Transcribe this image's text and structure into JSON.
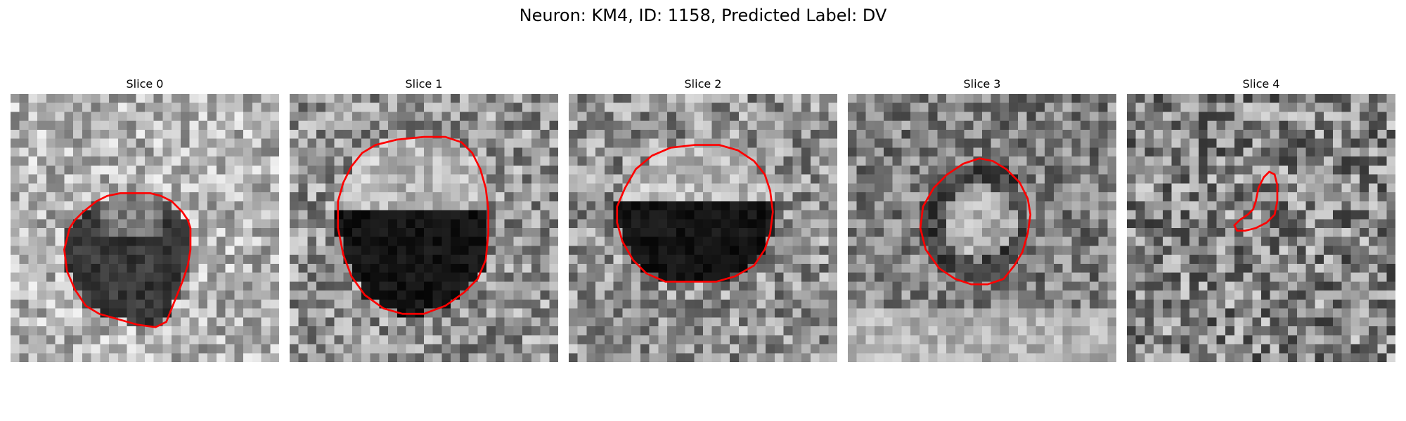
{
  "figure": {
    "title": "Neuron: KM4, ID: 1158, Predicted Label: DV"
  },
  "colors": {
    "contour": "#ff0000",
    "background": "#ffffff",
    "colormap": "gray"
  },
  "panels": [
    {
      "title": "Slice 0",
      "structure": "dark-ring",
      "seed": 11,
      "contour": [
        [
          22,
          50
        ],
        [
          24,
          47
        ],
        [
          27,
          44
        ],
        [
          32,
          40
        ],
        [
          36,
          38
        ],
        [
          41,
          37
        ],
        [
          52,
          37
        ],
        [
          56,
          38
        ],
        [
          60,
          40
        ],
        [
          64,
          44
        ],
        [
          66,
          47
        ],
        [
          67,
          50
        ],
        [
          67,
          58
        ],
        [
          66,
          64
        ],
        [
          64,
          70
        ],
        [
          62,
          75
        ],
        [
          60,
          80
        ],
        [
          58,
          85
        ],
        [
          54,
          87
        ],
        [
          47,
          86
        ],
        [
          40,
          84
        ],
        [
          33,
          82
        ],
        [
          28,
          79
        ],
        [
          24,
          73
        ],
        [
          21,
          66
        ],
        [
          20,
          58
        ]
      ]
    },
    {
      "title": "Slice 1",
      "structure": "bright-cap",
      "seed": 23,
      "contour": [
        [
          18,
          40
        ],
        [
          20,
          33
        ],
        [
          23,
          27
        ],
        [
          27,
          22
        ],
        [
          32,
          19
        ],
        [
          40,
          17
        ],
        [
          50,
          16
        ],
        [
          58,
          16
        ],
        [
          64,
          18
        ],
        [
          68,
          22
        ],
        [
          71,
          28
        ],
        [
          73,
          35
        ],
        [
          74,
          43
        ],
        [
          74,
          52
        ],
        [
          73,
          62
        ],
        [
          70,
          69
        ],
        [
          65,
          74
        ],
        [
          58,
          79
        ],
        [
          50,
          82
        ],
        [
          42,
          82
        ],
        [
          35,
          80
        ],
        [
          28,
          75
        ],
        [
          23,
          68
        ],
        [
          20,
          60
        ],
        [
          18,
          50
        ]
      ]
    },
    {
      "title": "Slice 2",
      "structure": "bright-cap",
      "seed": 37,
      "contour": [
        [
          18,
          42
        ],
        [
          21,
          35
        ],
        [
          25,
          28
        ],
        [
          31,
          23
        ],
        [
          38,
          20
        ],
        [
          47,
          19
        ],
        [
          56,
          19
        ],
        [
          63,
          21
        ],
        [
          69,
          25
        ],
        [
          73,
          30
        ],
        [
          75,
          36
        ],
        [
          76,
          44
        ],
        [
          75,
          52
        ],
        [
          73,
          58
        ],
        [
          69,
          64
        ],
        [
          62,
          68
        ],
        [
          55,
          70
        ],
        [
          45,
          70
        ],
        [
          36,
          70
        ],
        [
          29,
          67
        ],
        [
          24,
          62
        ],
        [
          20,
          55
        ],
        [
          18,
          48
        ]
      ]
    },
    {
      "title": "Slice 3",
      "structure": "bright-center",
      "seed": 51,
      "contour": [
        [
          28,
          42
        ],
        [
          32,
          35
        ],
        [
          37,
          30
        ],
        [
          43,
          26
        ],
        [
          49,
          24
        ],
        [
          54,
          25
        ],
        [
          59,
          28
        ],
        [
          64,
          33
        ],
        [
          67,
          39
        ],
        [
          68,
          45
        ],
        [
          67,
          52
        ],
        [
          65,
          59
        ],
        [
          62,
          64
        ],
        [
          58,
          69
        ],
        [
          52,
          71
        ],
        [
          46,
          71
        ],
        [
          40,
          69
        ],
        [
          34,
          65
        ],
        [
          29,
          58
        ],
        [
          27,
          50
        ]
      ]
    },
    {
      "title": "Slice 4",
      "structure": "noise",
      "seed": 67,
      "contour": [
        [
          48,
          40
        ],
        [
          49,
          35
        ],
        [
          51,
          31
        ],
        [
          53,
          29
        ],
        [
          55,
          30
        ],
        [
          56,
          34
        ],
        [
          56,
          40
        ],
        [
          55,
          45
        ],
        [
          52,
          48
        ],
        [
          48,
          50
        ],
        [
          44,
          51
        ],
        [
          41,
          51
        ],
        [
          40,
          49
        ],
        [
          42,
          47
        ],
        [
          45,
          45
        ],
        [
          47,
          43
        ]
      ]
    }
  ]
}
